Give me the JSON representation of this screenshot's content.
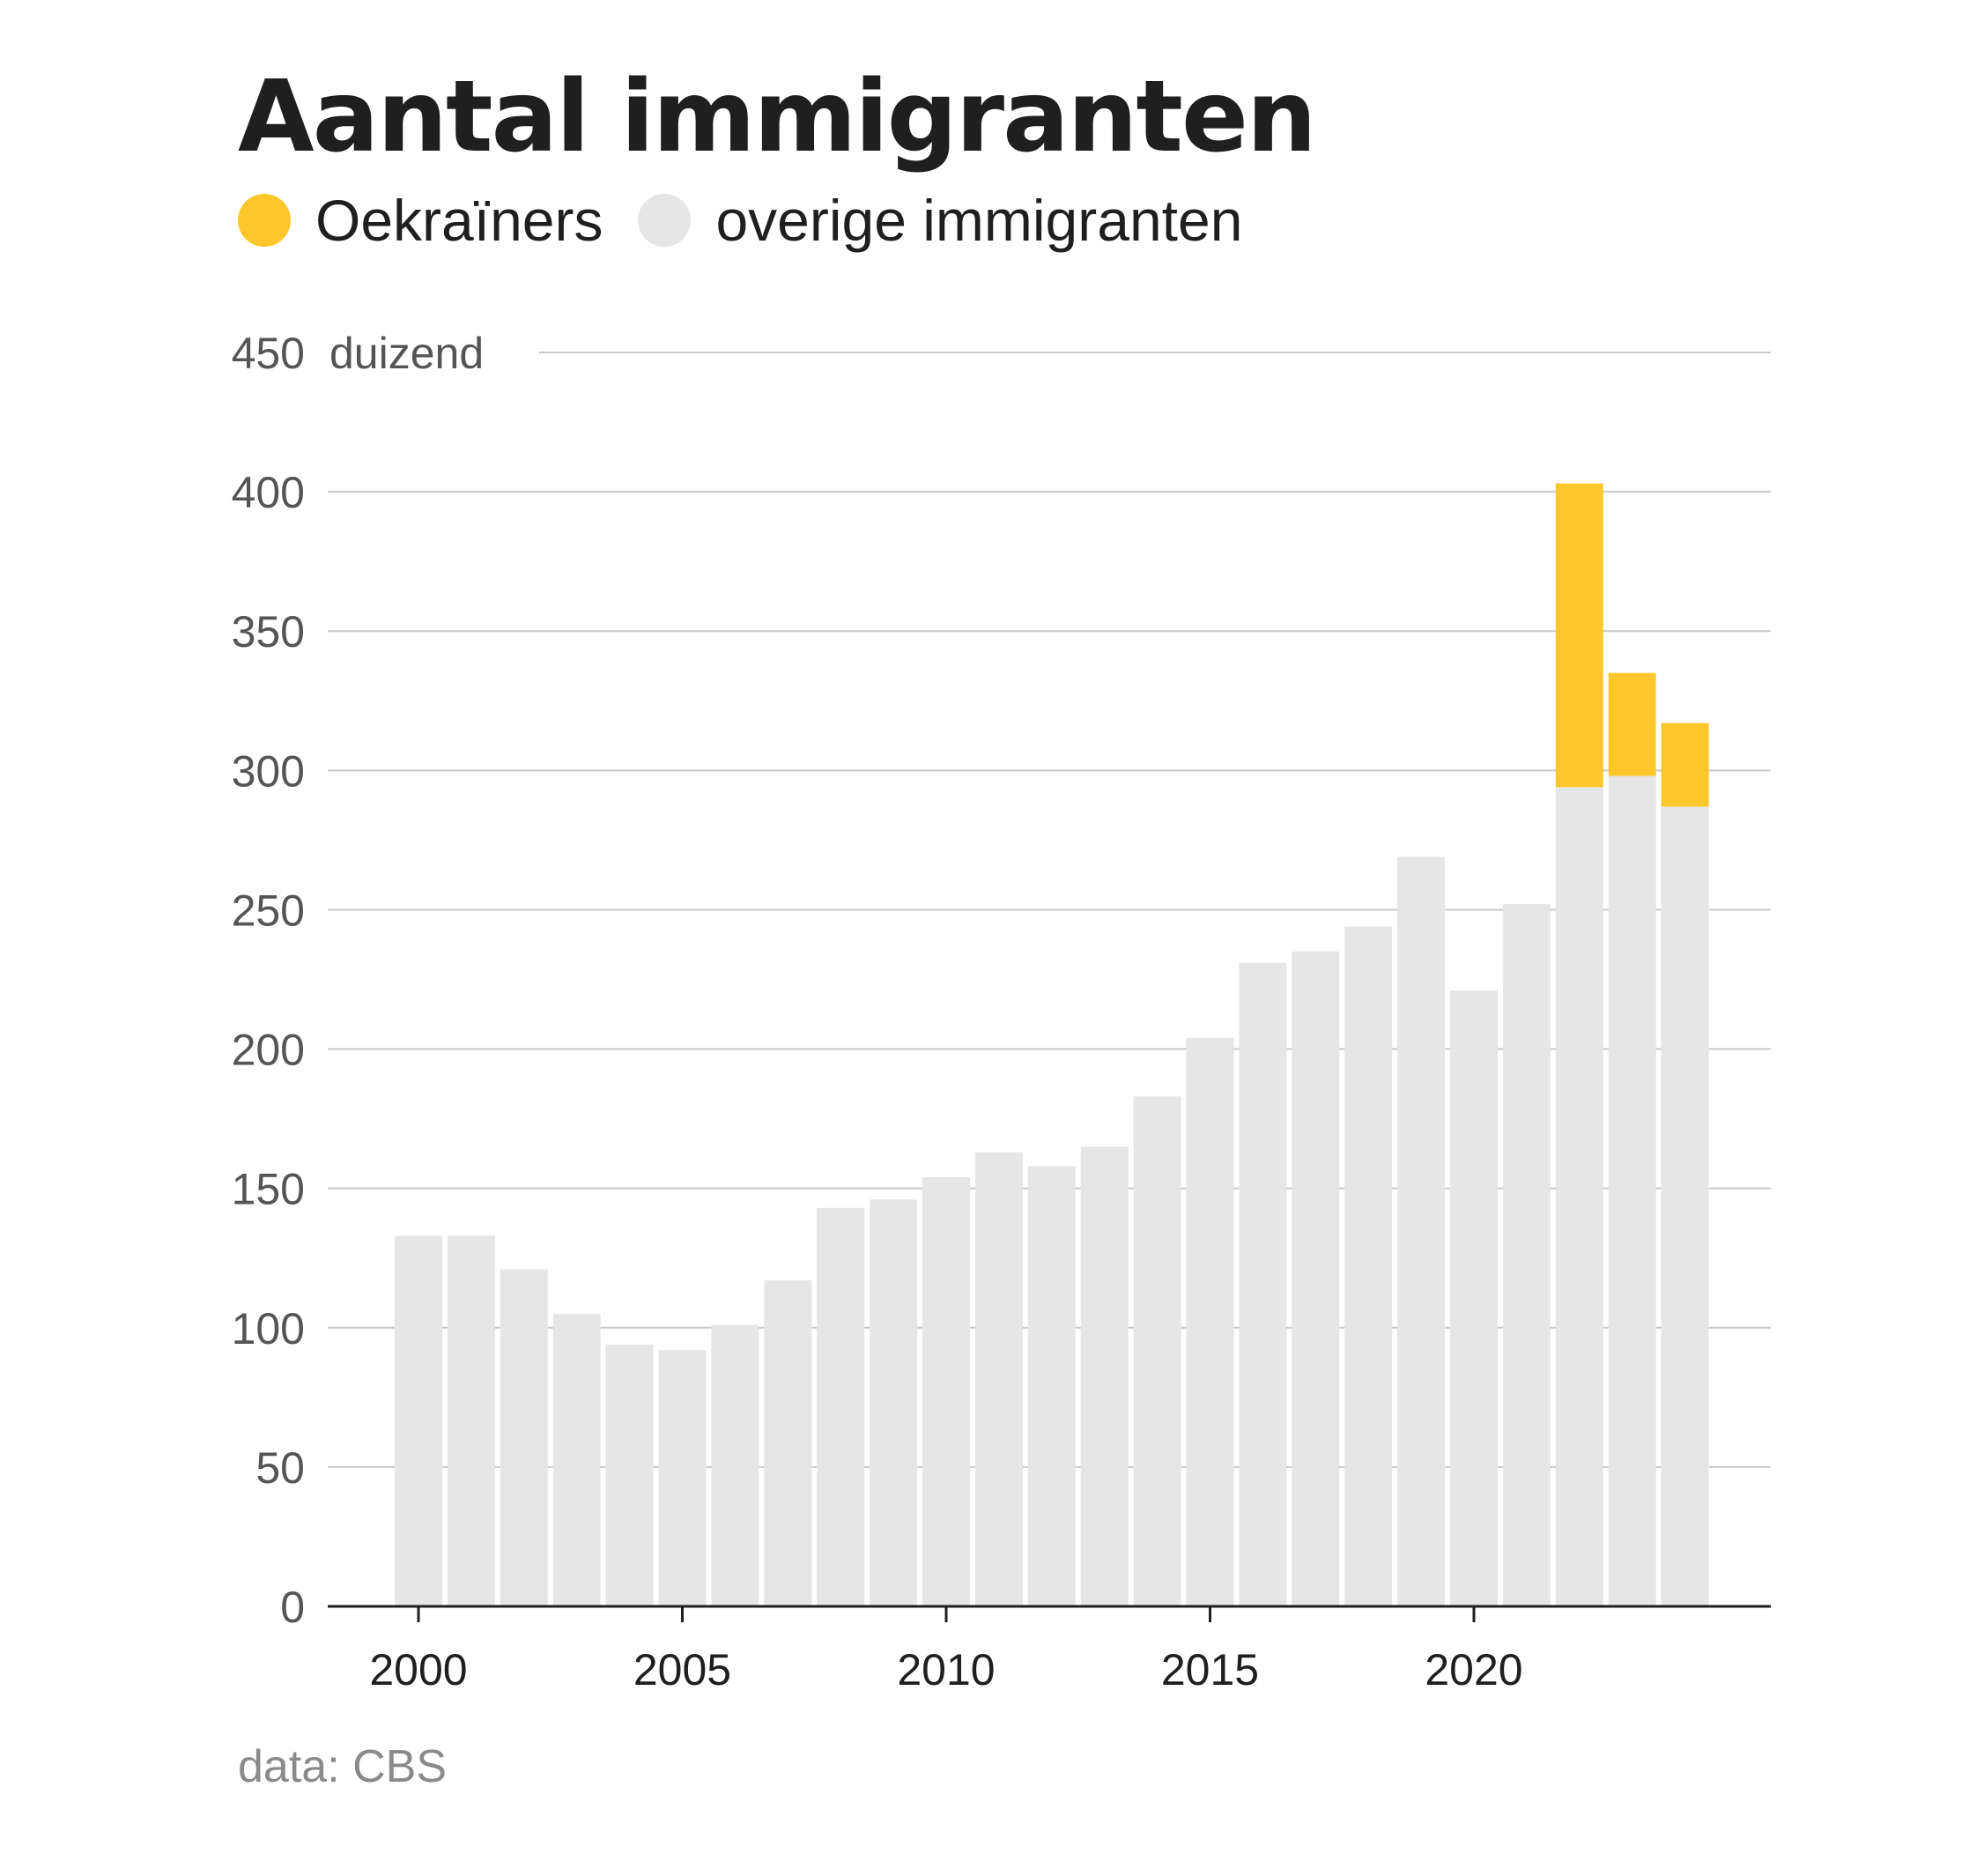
{
  "title": "Aantal immigranten",
  "source": "data: CBS",
  "legend": [
    {
      "label": "Oekraïners",
      "color": "#FFC72C"
    },
    {
      "label": "overige immigranten",
      "color": "#E6E6E6"
    }
  ],
  "chart_data": {
    "type": "bar",
    "stacked": true,
    "y_unit_label": "duizend",
    "ylim": [
      0,
      450
    ],
    "yticks": [
      0,
      50,
      100,
      150,
      200,
      250,
      300,
      350,
      400,
      450
    ],
    "xticks": [
      2000,
      2005,
      2010,
      2015,
      2020
    ],
    "grid": true,
    "legend_placement": "top-left",
    "categories": [
      2000,
      2001,
      2002,
      2003,
      2004,
      2005,
      2006,
      2007,
      2008,
      2009,
      2010,
      2011,
      2012,
      2013,
      2014,
      2015,
      2016,
      2017,
      2018,
      2019,
      2020,
      2021,
      2022,
      2023,
      2024
    ],
    "series": [
      {
        "name": "overige immigranten",
        "color": "#E6E6E6",
        "values": [
          133,
          133,
          121,
          105,
          94,
          92,
          101,
          117,
          143,
          146,
          154,
          163,
          158,
          165,
          183,
          204,
          231,
          235,
          244,
          269,
          221,
          252,
          294,
          298,
          287
        ]
      },
      {
        "name": "Oekraïners",
        "color": "#FFC72C",
        "values": [
          0,
          0,
          0,
          0,
          0,
          0,
          0,
          0,
          0,
          0,
          0,
          0,
          0,
          0,
          0,
          0,
          0,
          0,
          0,
          0,
          0,
          0,
          109,
          37,
          30
        ]
      }
    ]
  }
}
